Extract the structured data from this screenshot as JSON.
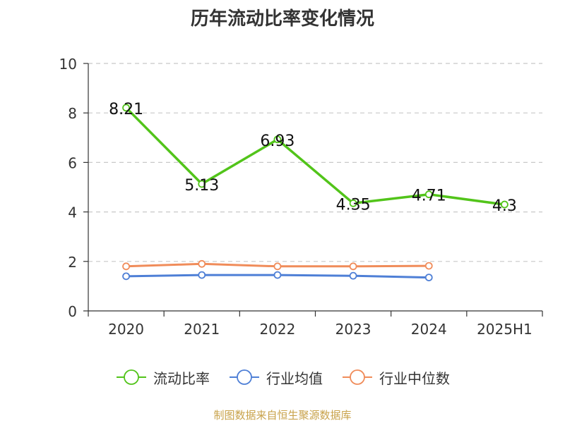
{
  "chart_title": "历年流动比率变化情况",
  "source": "制图数据来自恒生聚源数据库",
  "chart_data": {
    "type": "line",
    "title": "历年流动比率变化情况",
    "xlabel": "",
    "ylabel": "",
    "categories": [
      "2020",
      "2021",
      "2022",
      "2023",
      "2024",
      "2025H1"
    ],
    "ylim": [
      0,
      10
    ],
    "yticks": [
      0,
      2,
      4,
      6,
      8,
      10
    ],
    "grid": true,
    "legend_position": "bottom",
    "series": [
      {
        "name": "流动比率",
        "color": "#52c41a",
        "values": [
          8.21,
          5.13,
          6.93,
          4.35,
          4.71,
          4.3
        ],
        "labels": [
          "8.21",
          "5.13",
          "6.93",
          "4.35",
          "4.71",
          "4.3"
        ]
      },
      {
        "name": "行业均值",
        "color": "#4e7fd6",
        "values": [
          1.4,
          1.45,
          1.45,
          1.42,
          1.35,
          null
        ]
      },
      {
        "name": "行业中位数",
        "color": "#f08c5a",
        "values": [
          1.8,
          1.9,
          1.8,
          1.8,
          1.82,
          null
        ]
      }
    ]
  }
}
